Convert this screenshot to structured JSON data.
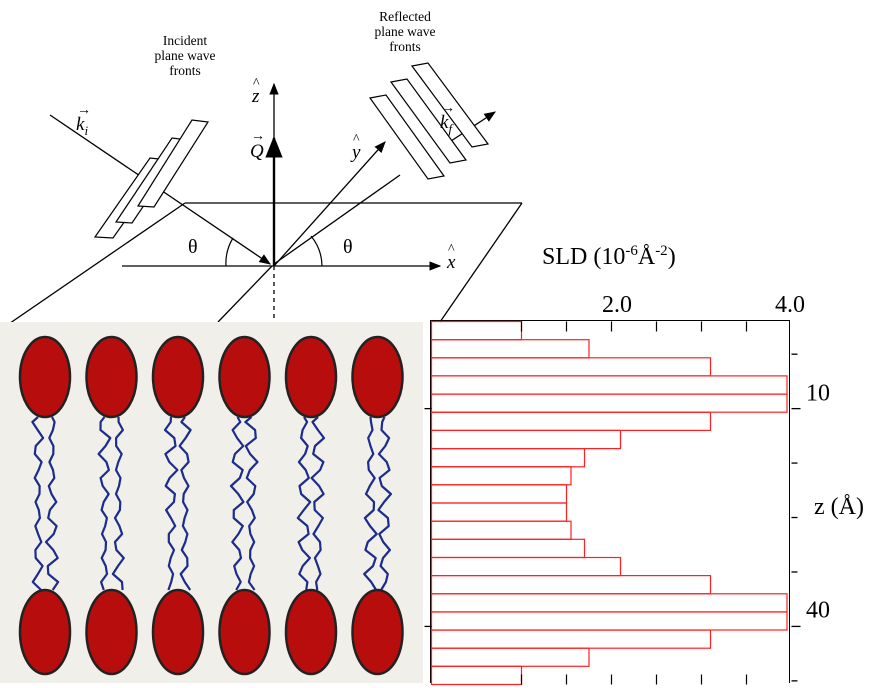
{
  "geometry": {
    "labels": {
      "incident": [
        "Incident",
        "plane wave",
        "fronts"
      ],
      "reflected": [
        "Reflected",
        "plane wave",
        "fronts"
      ],
      "k_i": "k",
      "k_i_sub": "i",
      "k_f": "k",
      "k_f_sub": "f",
      "z_hat": "z",
      "y_hat": "y",
      "x_hat": "x",
      "Q": "Q",
      "theta_left": "θ",
      "theta_right": "θ"
    }
  },
  "membrane": {
    "lipid_count_per_leaflet": 6,
    "head_color": "#b80d0d",
    "head_outline": "#222222",
    "tail_color": "#1c2c8c"
  },
  "chart_data": {
    "type": "bar",
    "orientation": "horizontal",
    "x_axis_title": "SLD (10",
    "x_axis_exp": "-6",
    "x_axis_unit": "Å",
    "x_axis_unit_exp": "-2",
    "x_axis_close": ")",
    "y_axis_title": "z (Å)",
    "x_ticks_labeled": [
      "2.0",
      "4.0"
    ],
    "y_ticks_labeled": [
      "10",
      "40"
    ],
    "x_range": [
      0,
      4.0
    ],
    "x_minor_tick_values": [
      1.0,
      1.5,
      2.0,
      2.5,
      3.0,
      3.5
    ],
    "y_range": [
      -2,
      48
    ],
    "z_bin_width": 2.5,
    "z_bin_starts": [
      -2,
      0.5,
      3,
      5.5,
      8,
      10.5,
      13,
      15.5,
      18,
      20.5,
      23,
      25.5,
      28,
      30.5,
      33,
      35.5,
      38,
      40.5,
      43,
      45.5
    ],
    "sld_values": [
      1.0,
      1.75,
      3.1,
      3.95,
      3.95,
      3.1,
      2.1,
      1.7,
      1.55,
      1.5,
      1.5,
      1.55,
      1.7,
      2.1,
      3.1,
      3.95,
      3.95,
      3.1,
      1.75,
      1.0
    ],
    "bar_color": "#ff2020"
  }
}
